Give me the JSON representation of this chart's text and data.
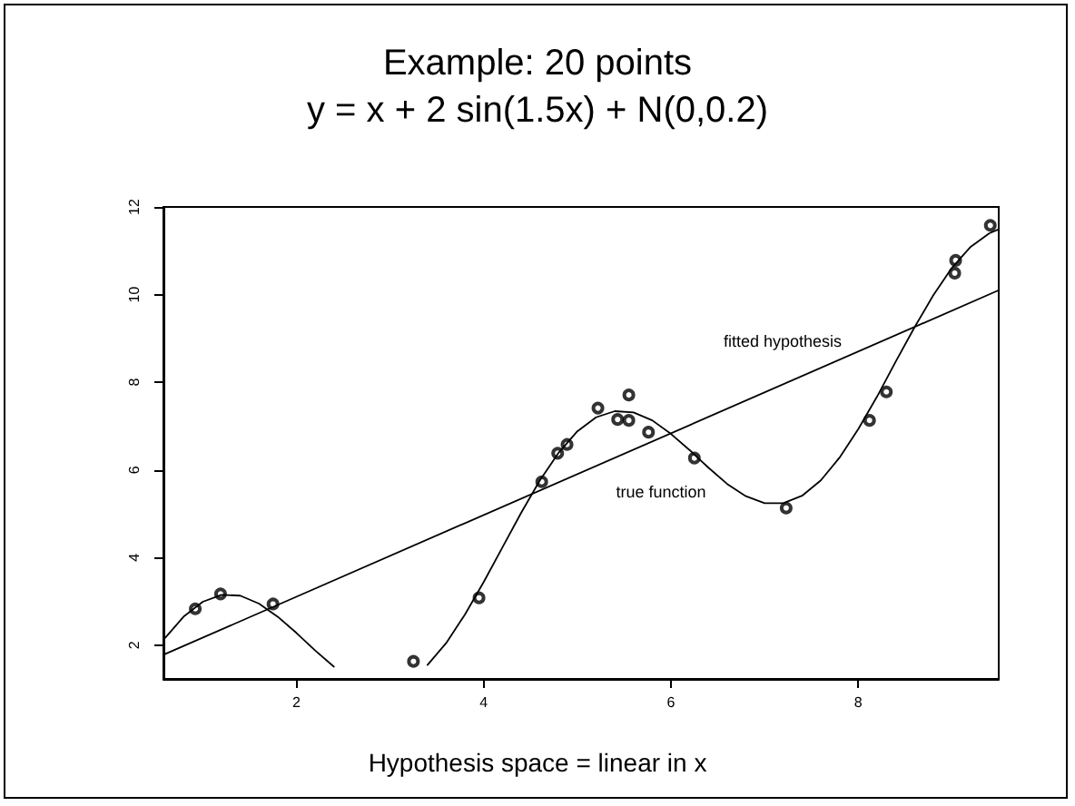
{
  "chart_data": {
    "type": "scatter",
    "title": "Example: 20 points",
    "subtitle": "y = x + 2 sin(1.5x) + N(0,0.2)",
    "xlabel": "Hypothesis space = linear in x",
    "xlim": [
      0.58,
      9.5
    ],
    "ylim": [
      1.23,
      12
    ],
    "xticks": [
      2,
      4,
      6,
      8
    ],
    "yticks": [
      2,
      4,
      6,
      8,
      10,
      12
    ],
    "grid": false,
    "marker": "circle",
    "annotations": [
      "fitted hypothesis",
      "true function"
    ],
    "series": [
      {
        "color": "#000000",
        "x": [
          0.92,
          1.19,
          1.75,
          3.25,
          3.95,
          4.62,
          4.79,
          4.89,
          5.22,
          5.43,
          5.55,
          5.55,
          5.76,
          6.25,
          7.23,
          8.12,
          8.3,
          9.03,
          9.04,
          9.41
        ],
        "values": [
          2.83,
          3.17,
          2.94,
          1.63,
          3.08,
          5.73,
          6.38,
          6.58,
          7.41,
          7.15,
          7.13,
          7.71,
          6.86,
          6.27,
          5.13,
          7.13,
          7.78,
          10.49,
          10.78,
          11.58
        ]
      },
      {
        "type": "line",
        "color": "#000000",
        "marker": "none",
        "line_style": "solid",
        "x": [
          0.6,
          0.8,
          1.0,
          1.2,
          1.4,
          1.6,
          1.8,
          2.0,
          2.2,
          2.4,
          2.6,
          2.8,
          3.0,
          3.2,
          3.4,
          3.6,
          3.8,
          4.0,
          4.2,
          4.4,
          4.6,
          4.8,
          5.0,
          5.2,
          5.4,
          5.6,
          5.8,
          6.0,
          6.2,
          6.4,
          6.6,
          6.8,
          7.0,
          7.2,
          7.4,
          7.6,
          7.8,
          8.0,
          8.2,
          8.4,
          8.6,
          8.8,
          9.0,
          9.2,
          9.4,
          9.5
        ],
        "values": [
          2.17,
          2.66,
          2.99,
          3.15,
          3.13,
          2.95,
          2.65,
          2.28,
          1.88,
          1.51,
          null,
          null,
          null,
          null,
          1.55,
          2.05,
          2.7,
          3.44,
          4.23,
          5.02,
          5.76,
          6.39,
          6.88,
          7.2,
          7.34,
          7.31,
          7.13,
          6.82,
          6.45,
          6.05,
          5.68,
          5.4,
          5.24,
          5.24,
          5.41,
          5.76,
          6.28,
          6.93,
          7.67,
          8.47,
          9.25,
          9.98,
          10.61,
          11.09,
          11.4,
          11.49
        ]
      },
      {
        "type": "line",
        "color": "#000000",
        "marker": "none",
        "line_style": "solid",
        "x": [
          0.58,
          9.5
        ],
        "values": [
          1.78,
          10.1
        ]
      }
    ]
  }
}
